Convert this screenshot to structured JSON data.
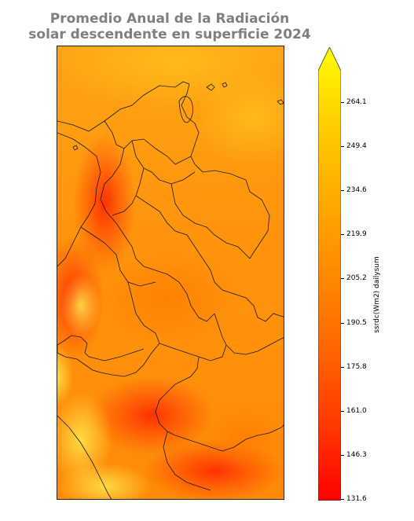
{
  "title_line1": "Promedio Anual de la Radiación",
  "title_line2": "solar descendente en superficie 2024",
  "colorbar": {
    "label": "ssrdc(Wm2) dailysum",
    "min": 131.6,
    "max": 275.0,
    "ticks": [
      "264.1",
      "249.4",
      "234.6",
      "219.9",
      "205.2",
      "190.5",
      "175.8",
      "161.0",
      "146.3",
      "131.6"
    ],
    "colormap": [
      "#ff0000",
      "#ff3b00",
      "#ff6a00",
      "#ff9200",
      "#ffb400",
      "#ffd600",
      "#ffff00"
    ],
    "extend": "max"
  },
  "map": {
    "region": "Colombia and neighbors",
    "boundaries": "department borders",
    "dominant_color": "#ff9c12"
  }
}
